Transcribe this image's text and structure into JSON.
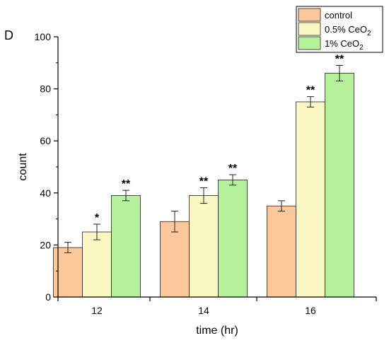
{
  "panel_label": "D",
  "chart_data": {
    "type": "bar",
    "categories": [
      "12",
      "14",
      "16"
    ],
    "xlabel": "time (hr)",
    "ylabel": "count",
    "ylim": [
      0,
      100
    ],
    "yticks": [
      "0",
      "20",
      "40",
      "60",
      "80",
      "100"
    ],
    "grid": false,
    "legend_position": "top-right",
    "series": [
      {
        "name": "control",
        "name_base": "control",
        "name_sub": "",
        "color": "#FCC79A",
        "values": [
          19,
          29,
          35
        ],
        "errors": [
          2,
          4,
          2
        ],
        "significance": [
          "",
          "",
          ""
        ]
      },
      {
        "name": "0.5% CeO2",
        "name_base": "0.5% CeO",
        "name_sub": "2",
        "color": "#FAF7C2",
        "values": [
          25,
          39,
          75
        ],
        "errors": [
          3,
          3,
          2
        ],
        "significance": [
          "*",
          "**",
          "**"
        ]
      },
      {
        "name": "1% CeO2",
        "name_base": "1% CeO",
        "name_sub": "2",
        "color": "#B5F09A",
        "values": [
          39,
          45,
          86
        ],
        "errors": [
          2,
          2,
          3
        ],
        "significance": [
          "**",
          "**",
          "**"
        ]
      }
    ]
  }
}
